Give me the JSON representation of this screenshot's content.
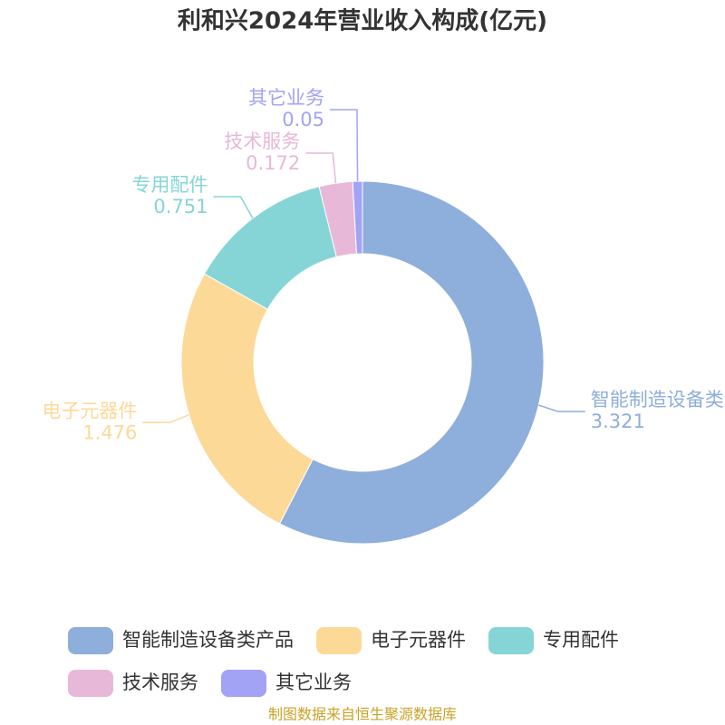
{
  "chart_data": {
    "type": "donut",
    "title": "利和兴2024年营业收入构成(亿元)",
    "categories": [
      "智能制造设备类产品",
      "电子元器件",
      "专用配件",
      "技术服务",
      "其它业务"
    ],
    "values": [
      3.321,
      1.476,
      0.751,
      0.172,
      0.05
    ],
    "colors": [
      "#8eaedb",
      "#fdd998",
      "#86d5d6",
      "#e8b8d8",
      "#a3a3f5"
    ],
    "source": "制图数据来自恒生聚源数据库"
  }
}
